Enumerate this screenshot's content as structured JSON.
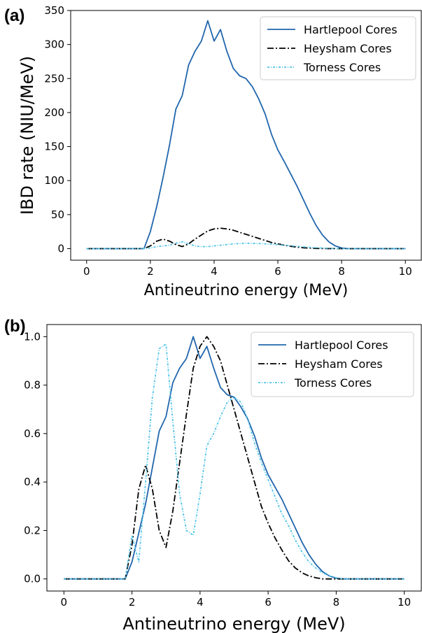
{
  "chart_data": [
    {
      "type": "line",
      "panel_label": "(a)",
      "xlabel": "Antineutrino energy (MeV)",
      "ylabel": "IBD rate (NIU/MeV)",
      "xlim": [
        -0.5,
        10.5
      ],
      "ylim": [
        -17,
        350
      ],
      "xticks": [
        0,
        2,
        4,
        6,
        8,
        10
      ],
      "yticks": [
        0,
        50,
        100,
        150,
        200,
        250,
        300,
        350
      ],
      "grid": false,
      "legend_position": "top-right",
      "x": [
        0,
        1.8,
        2.0,
        2.2,
        2.4,
        2.6,
        2.8,
        3.0,
        3.2,
        3.4,
        3.6,
        3.8,
        4.0,
        4.2,
        4.4,
        4.6,
        4.8,
        5.0,
        5.2,
        5.4,
        5.6,
        5.8,
        6.0,
        6.2,
        6.4,
        6.6,
        6.8,
        7.0,
        7.2,
        7.4,
        7.6,
        7.8,
        8.0,
        8.2,
        8.4,
        8.6,
        8.8,
        9.0,
        9.5,
        10
      ],
      "series": [
        {
          "name": "Hartlepool Cores",
          "color": "#2166ac",
          "dash": "solid",
          "values": [
            0,
            0,
            25,
            62,
            105,
            152,
            205,
            225,
            270,
            290,
            305,
            335,
            305,
            322,
            290,
            265,
            254,
            250,
            238,
            220,
            198,
            168,
            145,
            128,
            110,
            92,
            72,
            52,
            34,
            20,
            10,
            4,
            1,
            0,
            0,
            0,
            0,
            0,
            0,
            0
          ]
        },
        {
          "name": "Heysham Cores",
          "color": "#000000",
          "dash": "dashdot",
          "values": [
            0,
            0,
            4,
            11,
            14,
            11,
            6,
            3,
            7,
            14,
            20,
            26,
            29,
            30,
            29,
            27,
            24,
            21,
            18,
            15,
            12,
            9,
            7,
            5,
            3.5,
            2.2,
            1.3,
            0.7,
            0.3,
            0.1,
            0,
            0,
            0,
            0,
            0,
            0,
            0,
            0,
            0,
            0
          ]
        },
        {
          "name": "Torness Cores",
          "color": "#4fc3e8",
          "dash": "dotted",
          "values": [
            0,
            0,
            1,
            3,
            4,
            5,
            8,
            10,
            7,
            4,
            3,
            3,
            4,
            5,
            6,
            7,
            7.5,
            8,
            7.8,
            7.4,
            7,
            6.5,
            5.8,
            5,
            4.2,
            3.4,
            2.6,
            1.9,
            1.3,
            0.8,
            0.5,
            0.3,
            0.1,
            0,
            0,
            0,
            0,
            0,
            0,
            0
          ]
        }
      ]
    },
    {
      "type": "line",
      "panel_label": "(b)",
      "xlabel": "Antineutrino energy (MeV)",
      "ylabel": "",
      "xlim": [
        -0.5,
        10.5
      ],
      "ylim": [
        -0.05,
        1.05
      ],
      "xticks": [
        0,
        2,
        4,
        6,
        8,
        10
      ],
      "yticks": [
        0.0,
        0.2,
        0.4,
        0.6,
        0.8,
        1.0
      ],
      "grid": false,
      "legend_position": "top-right",
      "x": [
        0,
        1.8,
        2.0,
        2.2,
        2.4,
        2.6,
        2.8,
        3.0,
        3.2,
        3.4,
        3.6,
        3.8,
        4.0,
        4.2,
        4.4,
        4.6,
        4.8,
        5.0,
        5.2,
        5.4,
        5.6,
        5.8,
        6.0,
        6.2,
        6.4,
        6.6,
        6.8,
        7.0,
        7.2,
        7.4,
        7.6,
        7.8,
        8.0,
        8.2,
        8.4,
        8.6,
        8.8,
        9.0,
        9.5,
        10
      ],
      "series": [
        {
          "name": "Hartlepool Cores",
          "color": "#2166ac",
          "dash": "solid",
          "values": [
            0,
            0,
            0.07,
            0.19,
            0.31,
            0.46,
            0.61,
            0.67,
            0.81,
            0.87,
            0.91,
            1.0,
            0.91,
            0.96,
            0.87,
            0.79,
            0.76,
            0.75,
            0.71,
            0.66,
            0.59,
            0.5,
            0.43,
            0.38,
            0.33,
            0.27,
            0.21,
            0.15,
            0.1,
            0.06,
            0.03,
            0.012,
            0.003,
            0,
            0,
            0,
            0,
            0,
            0,
            0
          ]
        },
        {
          "name": "Heysham Cores",
          "color": "#000000",
          "dash": "dashdot",
          "values": [
            0,
            0,
            0.14,
            0.37,
            0.47,
            0.37,
            0.2,
            0.13,
            0.28,
            0.48,
            0.68,
            0.87,
            0.96,
            1.0,
            0.96,
            0.9,
            0.8,
            0.7,
            0.6,
            0.5,
            0.4,
            0.3,
            0.23,
            0.17,
            0.12,
            0.075,
            0.045,
            0.025,
            0.012,
            0.005,
            0,
            0,
            0,
            0,
            0,
            0,
            0,
            0,
            0,
            0
          ]
        },
        {
          "name": "Torness Cores",
          "color": "#4fc3e8",
          "dash": "dotted",
          "values": [
            0,
            0,
            0.18,
            0.07,
            0.4,
            0.75,
            0.95,
            0.97,
            0.65,
            0.35,
            0.2,
            0.18,
            0.35,
            0.55,
            0.6,
            0.67,
            0.73,
            0.75,
            0.73,
            0.66,
            0.56,
            0.48,
            0.41,
            0.34,
            0.27,
            0.22,
            0.16,
            0.11,
            0.07,
            0.045,
            0.025,
            0.012,
            0.005,
            0,
            0,
            0,
            0,
            0,
            0,
            0
          ]
        }
      ]
    }
  ]
}
